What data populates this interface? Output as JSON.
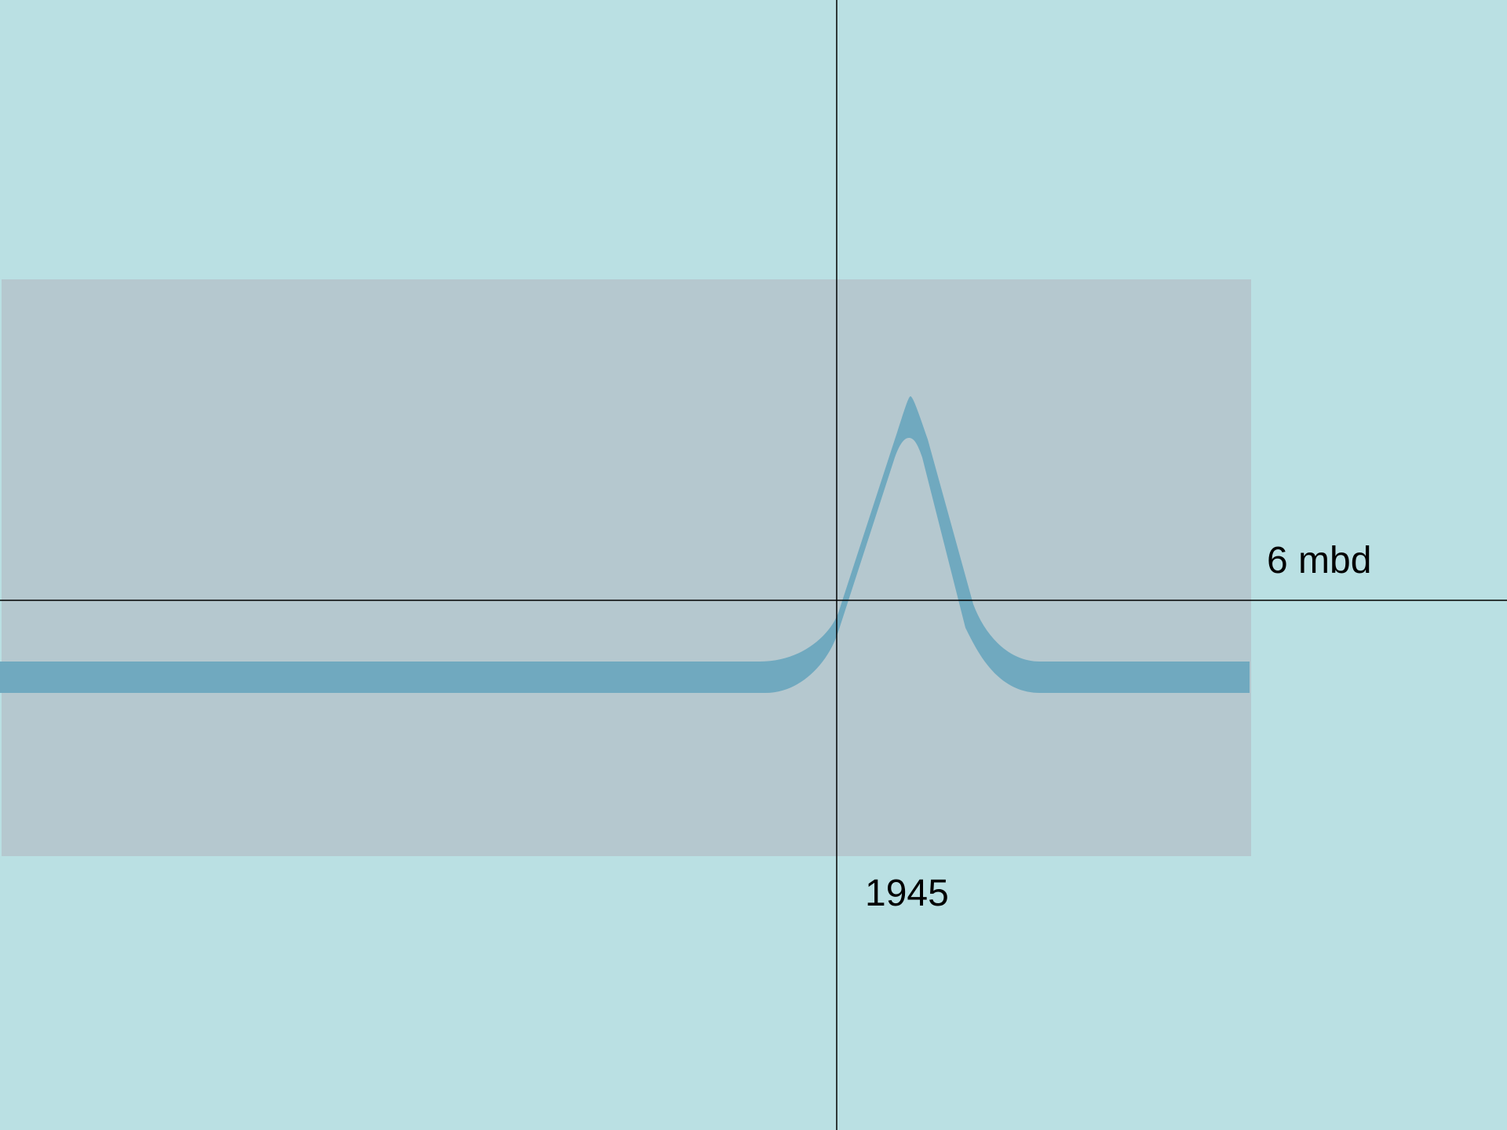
{
  "labels": {
    "level_label": "6 mbd",
    "year_label": "1945"
  },
  "colors": {
    "background": "#bae0e3",
    "panel": "#b5c8cf",
    "band": "#70a9bf",
    "axis_lines": "#000000",
    "text": "#000000"
  }
}
